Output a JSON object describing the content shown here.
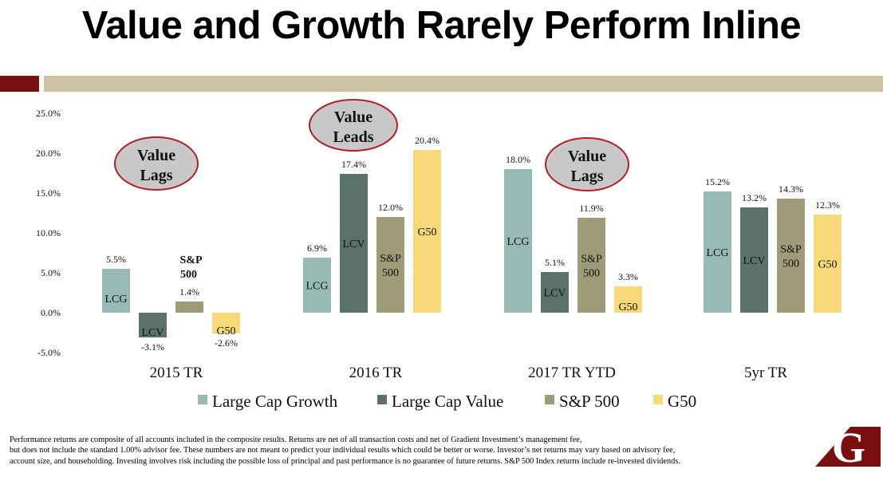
{
  "title": "Value and Growth Rarely Perform Inline",
  "colors": {
    "accent_red": "#7a0f10",
    "accent_tan": "#cbc3a2",
    "lcg": "#97bab5",
    "lcv": "#5a716c",
    "sp500": "#9e9b78",
    "g50": "#f8d97a",
    "bubble_fill": "#c8c8c8",
    "bubble_stroke": "#b21e24"
  },
  "chart_data": {
    "type": "bar",
    "title": "",
    "xlabel": "",
    "ylabel": "",
    "ylim": [
      -5,
      25
    ],
    "y_ticks": [
      "-5.0%",
      "0.0%",
      "5.0%",
      "10.0%",
      "15.0%",
      "20.0%",
      "25.0%"
    ],
    "grid": false,
    "legend_position": "bottom",
    "categories": [
      "2015 TR",
      "2016 TR",
      "2017 TR YTD",
      "5yr TR"
    ],
    "series": [
      {
        "name": "Large Cap Growth",
        "short": [
          "LCG",
          "LCG",
          "LCG",
          "LCG"
        ],
        "color": "#97bab5",
        "values": [
          5.5,
          6.9,
          18.0,
          15.2
        ],
        "value_labels": [
          "5.5%",
          "6.9%",
          "18.0%",
          "15.2%"
        ]
      },
      {
        "name": "Large Cap Value",
        "short": [
          "LCV",
          "LCV",
          "LCV",
          "LCV"
        ],
        "color": "#5a716c",
        "values": [
          -3.1,
          17.4,
          5.1,
          13.2
        ],
        "value_labels": [
          "-3.1%",
          "17.4%",
          "5.1%",
          "13.2%"
        ]
      },
      {
        "name": "S&P 500",
        "short": [
          "S&P 500",
          "S&P 500",
          "S&P 500",
          "S&P 500"
        ],
        "color": "#9e9b78",
        "values": [
          1.4,
          12.0,
          11.9,
          14.3
        ],
        "value_labels": [
          "1.4%",
          "12.0%",
          "11.9%",
          "14.3%"
        ]
      },
      {
        "name": "G50",
        "short": [
          "G50",
          "G50",
          "G50",
          "G50"
        ],
        "color": "#f8d97a",
        "values": [
          -2.6,
          20.4,
          3.3,
          12.3
        ],
        "value_labels": [
          "-2.6%",
          "20.4%",
          "3.3%",
          "12.3%"
        ]
      }
    ],
    "annotations": [
      {
        "lines": [
          "Value",
          "Lags"
        ],
        "category": "2015 TR"
      },
      {
        "lines": [
          "Value",
          "Leads"
        ],
        "category": "2016 TR"
      },
      {
        "lines": [
          "Value",
          "Lags"
        ],
        "category": "2017 TR YTD"
      }
    ]
  },
  "footnote": [
    "Performance returns are composite of all accounts included in the composite results.   Returns are net of all transaction costs and net of Gradient Investment’s management fee,",
    "but does not include the standard 1.00% advisor fee. These numbers are not meant to predict your individual results which could be better or worse. Investor’s net returns may vary based on advisory fee,",
    "account size, and householding. Investing involves risk including the possible loss of principal and past performance is no guarantee of future returns. S&P 500 Index returns include re-invested dividends."
  ],
  "logo": {
    "letter": "G"
  }
}
